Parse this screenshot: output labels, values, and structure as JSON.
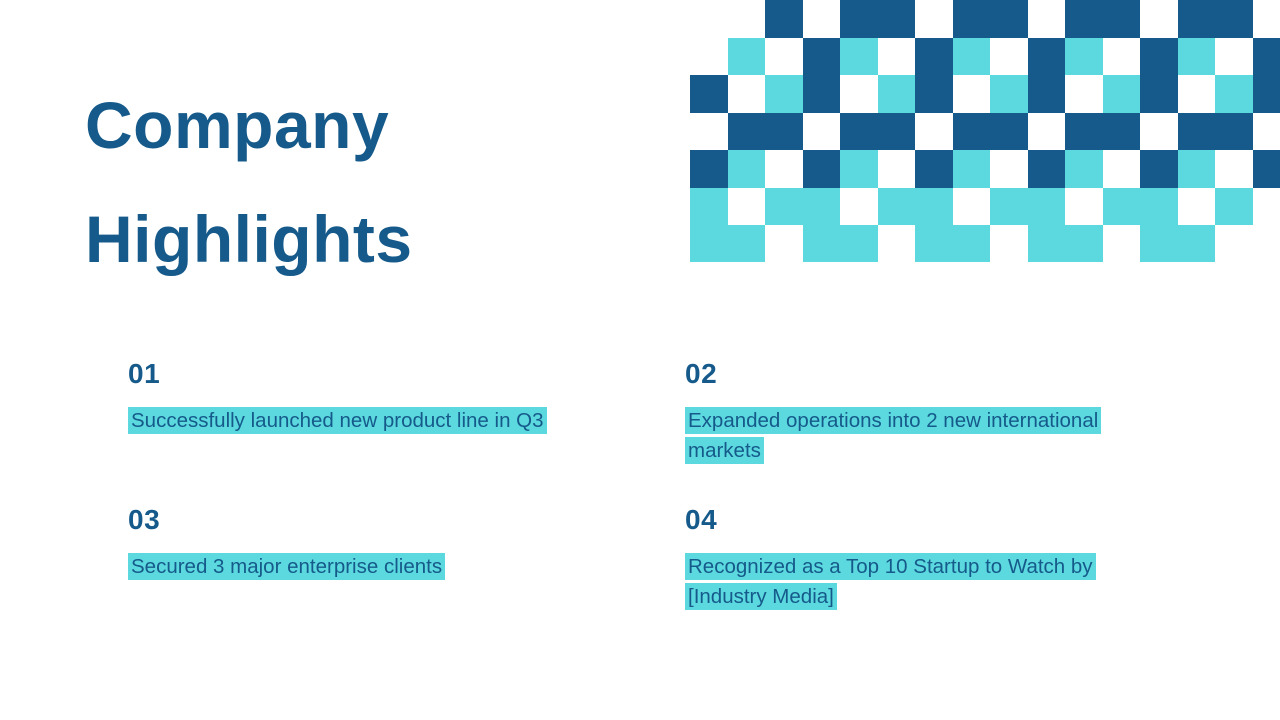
{
  "slide": {
    "title": {
      "line1": "Company",
      "line2": "Highlights"
    },
    "items": [
      {
        "number": "01",
        "text": "Successfully launched new product line in Q3"
      },
      {
        "number": "02",
        "text": "Expanded operations into 2 new international markets"
      },
      {
        "number": "03",
        "text": "Secured 3 major enterprise clients"
      },
      {
        "number": "04",
        "text": "Recognized as a Top 10 Startup to Watch by [Industry Media]"
      }
    ]
  },
  "colors": {
    "background": "#FFFFFF",
    "primary": "#155A8A",
    "highlight": "#5CD9DF",
    "pattern_dark": "#155A8A",
    "pattern_cyan": "#5CD9DF"
  }
}
